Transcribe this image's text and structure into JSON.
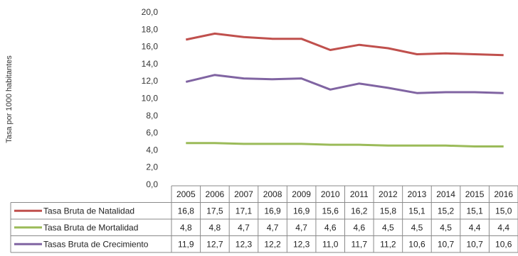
{
  "chart_data": {
    "type": "line",
    "ylabel": "Tasa por 1000 habitantes",
    "ylim": [
      0,
      20
    ],
    "yticks": [
      "0,0",
      "2,0",
      "4,0",
      "6,0",
      "8,0",
      "10,0",
      "12,0",
      "14,0",
      "16,0",
      "18,0",
      "20,0"
    ],
    "categories": [
      "2005",
      "2006",
      "2007",
      "2008",
      "2009",
      "2010",
      "2011",
      "2012",
      "2013",
      "2014",
      "2015",
      "2016"
    ],
    "grid": false,
    "legend": "data-table",
    "series": [
      {
        "name": "Tasa Bruta de Natalidad",
        "color": "#c0504d",
        "values": [
          16.8,
          17.5,
          17.1,
          16.9,
          16.9,
          15.6,
          16.2,
          15.8,
          15.1,
          15.2,
          15.1,
          15.0
        ],
        "labels": [
          "16,8",
          "17,5",
          "17,1",
          "16,9",
          "16,9",
          "15,6",
          "16,2",
          "15,8",
          "15,1",
          "15,2",
          "15,1",
          "15,0"
        ]
      },
      {
        "name": "Tasa Bruta de Mortalidad",
        "color": "#9bbb59",
        "values": [
          4.8,
          4.8,
          4.7,
          4.7,
          4.7,
          4.6,
          4.6,
          4.5,
          4.5,
          4.5,
          4.4,
          4.4
        ],
        "labels": [
          "4,8",
          "4,8",
          "4,7",
          "4,7",
          "4,7",
          "4,6",
          "4,6",
          "4,5",
          "4,5",
          "4,5",
          "4,4",
          "4,4"
        ]
      },
      {
        "name": "Tasas Bruta de Crecimiento",
        "color": "#8064a2",
        "values": [
          11.9,
          12.7,
          12.3,
          12.2,
          12.3,
          11.0,
          11.7,
          11.2,
          10.6,
          10.7,
          10.7,
          10.6
        ],
        "labels": [
          "11,9",
          "12,7",
          "12,3",
          "12,2",
          "12,3",
          "11,0",
          "11,7",
          "11,2",
          "10,6",
          "10,7",
          "10,7",
          "10,6"
        ]
      }
    ]
  }
}
